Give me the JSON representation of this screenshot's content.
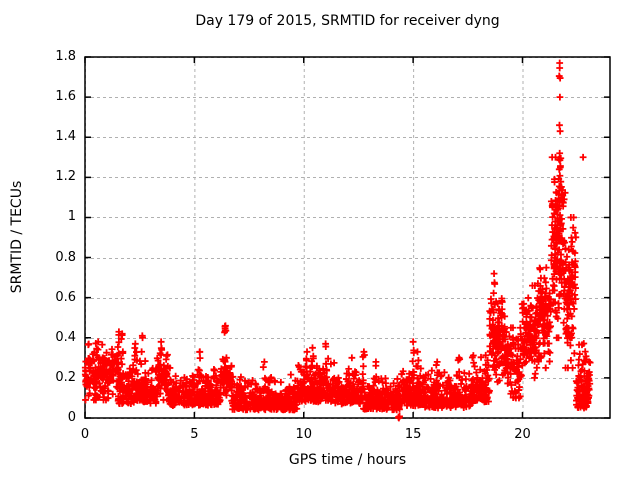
{
  "figure": {
    "title": "Day 179 of 2015, SRMTID for receiver dyng",
    "xlabel": "GPS time / hours",
    "ylabel": "SRMTID / TECUs"
  },
  "axes": {
    "x": {
      "min": 0,
      "max": 24,
      "ticks": [
        {
          "v": 0,
          "label": "0"
        },
        {
          "v": 5,
          "label": "5"
        },
        {
          "v": 10,
          "label": "10"
        },
        {
          "v": 15,
          "label": "15"
        },
        {
          "v": 20,
          "label": "20"
        }
      ]
    },
    "y": {
      "min": 0,
      "max": 1.8,
      "ticks": [
        {
          "v": 0,
          "label": "0"
        },
        {
          "v": 0.2,
          "label": "0.2"
        },
        {
          "v": 0.4,
          "label": "0.4"
        },
        {
          "v": 0.6,
          "label": "0.6"
        },
        {
          "v": 0.8,
          "label": "0.8"
        },
        {
          "v": 1,
          "label": "1"
        },
        {
          "v": 1.2,
          "label": "1.2"
        },
        {
          "v": 1.4,
          "label": "1.4"
        },
        {
          "v": 1.6,
          "label": "1.6"
        },
        {
          "v": 1.8,
          "label": "1.8"
        }
      ]
    }
  },
  "style": {
    "marker_color": "#ff0000",
    "grid_color": "#b0b0b0",
    "border_color": "#000000",
    "background": "#ffffff",
    "text_color": "#000000"
  },
  "chart_data": {
    "type": "scatter",
    "marker": "plus",
    "series_color": "#ff0000",
    "title": "Day 179 of 2015, SRMTID for receiver dyng",
    "xlabel": "GPS time / hours",
    "ylabel": "SRMTID / TECUs",
    "xlim": [
      0,
      24
    ],
    "ylim": [
      0,
      1.8
    ],
    "grid": true,
    "description": "~2800 red plus markers, one per ~30s epoch, 0-23.1 h. Quiet baseline 0.05-0.3 TECU with short spike columns (0.3-0.5). Activity rises after 18.4 h; cluster 18.5-19.2 h up to 0.72; sustained 0.2-0.8 from 20-21.3 h; major storm cluster 21.3-22.4 h peaking 1.77 at 21.7 h; decay tail to 0.05-0.4 by 23.1 h; isolated outlier (22.77, 1.30); near-zero point at 14.35 h.",
    "noise_segments": [
      [
        0.0,
        1.5,
        170,
        0.09,
        0.38,
        "band"
      ],
      [
        1.5,
        3.3,
        200,
        0.07,
        0.3,
        "floor"
      ],
      [
        3.3,
        3.8,
        55,
        0.09,
        0.32,
        "band"
      ],
      [
        3.8,
        6.2,
        270,
        0.06,
        0.26,
        "floor"
      ],
      [
        6.2,
        6.7,
        55,
        0.1,
        0.3,
        "band"
      ],
      [
        6.7,
        9.7,
        330,
        0.04,
        0.22,
        "floor"
      ],
      [
        9.7,
        11.4,
        190,
        0.08,
        0.3,
        "floor"
      ],
      [
        11.4,
        12.7,
        140,
        0.07,
        0.26,
        "floor"
      ],
      [
        12.7,
        14.4,
        190,
        0.04,
        0.2,
        "floor"
      ],
      [
        14.4,
        15.4,
        110,
        0.06,
        0.26,
        "floor"
      ],
      [
        15.4,
        17.7,
        250,
        0.05,
        0.24,
        "floor"
      ],
      [
        17.7,
        18.5,
        95,
        0.08,
        0.32,
        "floor"
      ],
      [
        18.5,
        19.2,
        110,
        0.18,
        0.62,
        "band"
      ],
      [
        19.2,
        19.95,
        85,
        0.1,
        0.45,
        "band"
      ],
      [
        19.95,
        20.7,
        110,
        0.2,
        0.66,
        "band"
      ],
      [
        20.7,
        21.3,
        100,
        0.25,
        0.78,
        "band"
      ],
      [
        21.3,
        21.95,
        130,
        0.4,
        1.3,
        "band"
      ],
      [
        21.95,
        22.45,
        100,
        0.25,
        1.0,
        "band"
      ],
      [
        22.45,
        23.1,
        110,
        0.05,
        0.4,
        "floor"
      ]
    ],
    "spike_columns": [
      [
        1.55,
        0.43,
        8,
        0.16
      ],
      [
        1.7,
        0.42,
        7,
        0.16
      ],
      [
        2.3,
        0.37,
        6,
        0.14
      ],
      [
        2.62,
        0.41,
        7,
        0.14
      ],
      [
        3.48,
        0.38,
        7,
        0.14
      ],
      [
        5.25,
        0.33,
        6,
        0.12
      ],
      [
        6.42,
        0.46,
        10,
        0.16
      ],
      [
        8.2,
        0.28,
        5,
        0.1
      ],
      [
        10.15,
        0.33,
        7,
        0.12
      ],
      [
        10.4,
        0.35,
        7,
        0.12
      ],
      [
        11.0,
        0.37,
        8,
        0.12
      ],
      [
        12.2,
        0.3,
        5,
        0.1
      ],
      [
        12.75,
        0.33,
        6,
        0.1
      ],
      [
        13.3,
        0.28,
        5,
        0.1
      ],
      [
        15.0,
        0.38,
        8,
        0.1
      ],
      [
        15.2,
        0.33,
        5,
        0.1
      ],
      [
        16.1,
        0.28,
        5,
        0.08
      ],
      [
        17.1,
        0.3,
        5,
        0.08
      ],
      [
        18.7,
        0.72,
        10,
        0.3
      ],
      [
        21.45,
        1.02,
        8,
        0.5
      ],
      [
        21.7,
        1.32,
        12,
        0.6
      ]
    ],
    "feature_points": [
      [
        14.35,
        0.0
      ],
      [
        14.38,
        0.008
      ],
      [
        14.33,
        0.004
      ],
      [
        22.77,
        1.3
      ],
      [
        21.7,
        1.77
      ],
      [
        21.7,
        1.745
      ],
      [
        21.68,
        1.705
      ],
      [
        21.72,
        1.695
      ],
      [
        21.71,
        1.6
      ],
      [
        21.69,
        1.46
      ],
      [
        21.72,
        1.43
      ],
      [
        21.67,
        1.29
      ],
      [
        21.71,
        1.285
      ],
      [
        21.75,
        1.295
      ],
      [
        21.73,
        1.25
      ],
      [
        21.68,
        1.24
      ]
    ]
  }
}
